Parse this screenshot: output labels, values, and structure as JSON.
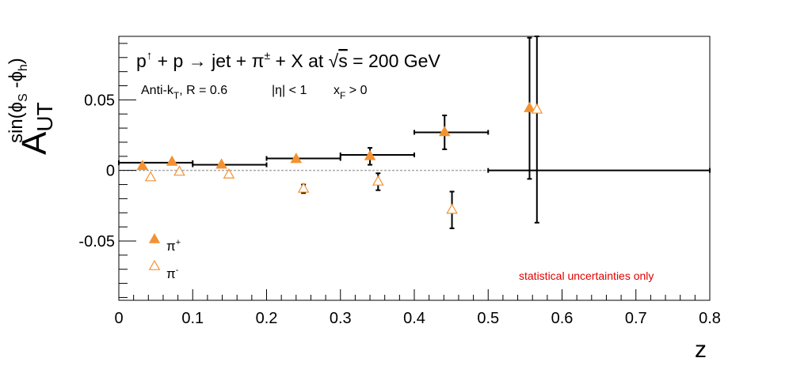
{
  "chart_data": {
    "type": "scatter",
    "title": "p↑ + p → jet + π± + X at √s = 200 GeV",
    "subtitle": {
      "algo": "Anti-k",
      "algo_sub": "T",
      "radius": ", R = 0.6",
      "eta": "|η| < 1",
      "xf": "x",
      "xf_sub": "F",
      "xf_tail": " > 0"
    },
    "title_parts": {
      "p": "p",
      "up": "↑",
      "mid": " + p → jet + π",
      "pm": "±",
      "end": " + X at ",
      "sqrt": "√",
      "s": "s",
      "energy": " = 200 GeV"
    },
    "xlabel": "z",
    "ylabel": {
      "main": "A",
      "sub": "UT",
      "sup": "sin(ϕ",
      "sup_s": "S",
      "sup_mid": " -ϕ",
      "sup_h": "h",
      "sup_end": ")"
    },
    "xlim": [
      0,
      0.8
    ],
    "ylim": [
      -0.092,
      0.095
    ],
    "x_ticks": [
      0,
      0.1,
      0.2,
      0.3,
      0.4,
      0.5,
      0.6,
      0.7,
      0.8
    ],
    "x_tick_labels": [
      "0",
      "0.1",
      "0.2",
      "0.3",
      "0.4",
      "0.5",
      "0.6",
      "0.7",
      "0.8"
    ],
    "y_ticks": [
      -0.05,
      0,
      0.05
    ],
    "y_tick_labels": [
      "-0.05",
      "0",
      "0.05"
    ],
    "reference_line_y": 0,
    "annotation": "statistical uncertainties only",
    "annotation_color": "#e00000",
    "marker_color": "#f39233",
    "legend_placement": "bottom-left",
    "bins": [
      {
        "x": 0.05,
        "xlo": 0.0,
        "xhi": 0.1,
        "y": 0.0055
      },
      {
        "x": 0.15,
        "xlo": 0.1,
        "xhi": 0.2,
        "y": 0.004
      },
      {
        "x": 0.25,
        "xlo": 0.2,
        "xhi": 0.3,
        "y": 0.0085
      },
      {
        "x": 0.35,
        "xlo": 0.3,
        "xhi": 0.4,
        "y": 0.011
      },
      {
        "x": 0.45,
        "xlo": 0.4,
        "xhi": 0.5,
        "y": 0.027
      },
      {
        "x": 0.65,
        "xlo": 0.5,
        "xhi": 0.8,
        "y": 0.0
      }
    ],
    "series": [
      {
        "name": "π",
        "name_sup": "+",
        "marker": "filled-triangle",
        "points": [
          {
            "x": 0.032,
            "y": 0.003,
            "err": 0.0
          },
          {
            "x": 0.072,
            "y": 0.006,
            "err": 0.0
          },
          {
            "x": 0.139,
            "y": 0.004,
            "err": 0.0
          },
          {
            "x": 0.24,
            "y": 0.008,
            "err": 0.0
          },
          {
            "x": 0.34,
            "y": 0.01,
            "err": 0.006
          },
          {
            "x": 0.441,
            "y": 0.027,
            "err": 0.012
          },
          {
            "x": 0.556,
            "y": 0.044,
            "err": 0.05
          }
        ]
      },
      {
        "name": "π",
        "name_sup": "-",
        "marker": "open-triangle",
        "points": [
          {
            "x": 0.043,
            "y": -0.005,
            "err": 0.0
          },
          {
            "x": 0.082,
            "y": -0.001,
            "err": 0.0
          },
          {
            "x": 0.149,
            "y": -0.003,
            "err": 0.0
          },
          {
            "x": 0.25,
            "y": -0.013,
            "err": 0.003
          },
          {
            "x": 0.351,
            "y": -0.008,
            "err": 0.006
          },
          {
            "x": 0.451,
            "y": -0.028,
            "err": 0.013
          },
          {
            "x": 0.566,
            "y": 0.043,
            "err": 0.08
          }
        ]
      }
    ]
  }
}
